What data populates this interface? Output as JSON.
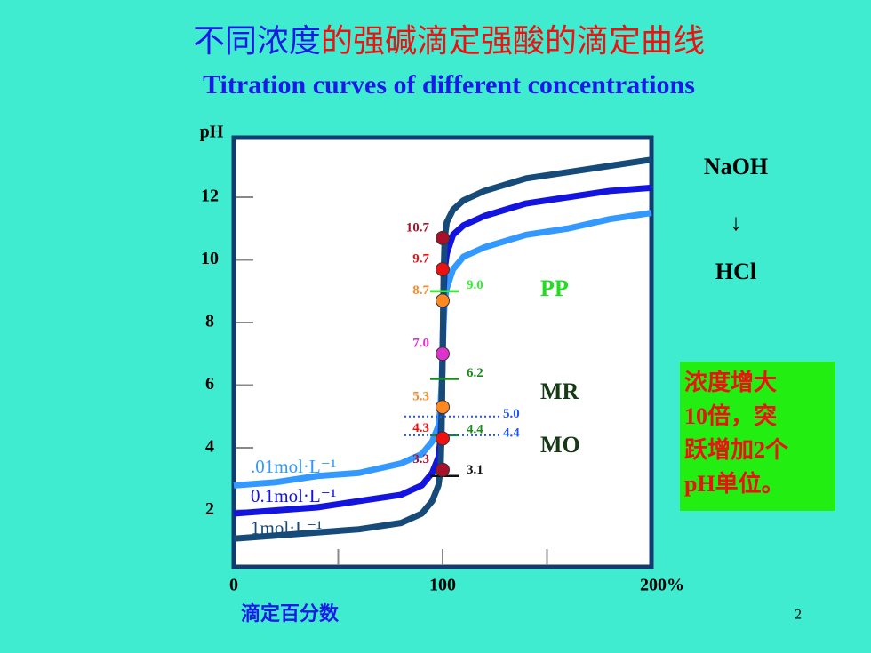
{
  "chart_data": {
    "type": "line",
    "title_parts": [
      "不同浓度",
      "的强碱滴定强酸的滴定曲线"
    ],
    "subtitle": "Titration curves of  different concentrations",
    "ylabel": "pH",
    "xlabel": "滴定百分数",
    "x": [
      0,
      20,
      40,
      60,
      80,
      90,
      95,
      98,
      99,
      99.5,
      100,
      100.5,
      101,
      102,
      105,
      110,
      120,
      140,
      160,
      180,
      200
    ],
    "series": [
      {
        "name": ".01mol·L⁻¹",
        "color": "#3399ff",
        "values": [
          2.8,
          2.9,
          3.1,
          3.2,
          3.5,
          3.8,
          4.2,
          4.7,
          5.3,
          6.0,
          7.0,
          8.0,
          8.7,
          9.1,
          9.7,
          10.1,
          10.4,
          10.8,
          11.0,
          11.3,
          11.5
        ]
      },
      {
        "name": "0.1mol·L⁻¹",
        "color": "#1414e0",
        "values": [
          1.9,
          2.0,
          2.1,
          2.3,
          2.5,
          2.8,
          3.2,
          3.7,
          4.3,
          5.0,
          7.0,
          9.0,
          9.7,
          10.2,
          10.8,
          11.1,
          11.4,
          11.8,
          12.0,
          12.2,
          12.3
        ]
      },
      {
        "name": "1mol·L⁻¹",
        "color": "#164a78",
        "values": [
          1.1,
          1.2,
          1.3,
          1.4,
          1.6,
          1.9,
          2.3,
          2.8,
          3.3,
          4.5,
          7.0,
          9.5,
          10.7,
          11.2,
          11.6,
          11.9,
          12.2,
          12.6,
          12.8,
          13.0,
          13.2
        ]
      }
    ],
    "xlim": [
      0,
      200
    ],
    "ylim": [
      0.2,
      13.9
    ],
    "xticks": [
      0,
      100,
      {
        "value": 200,
        "label": "200%"
      }
    ],
    "xminor": [
      50,
      150
    ],
    "yticks": [
      2,
      4,
      6,
      8,
      10,
      12
    ],
    "markers": {
      "x": 100,
      "values": [
        10.7,
        9.7,
        8.7,
        7.0,
        5.3,
        4.3,
        3.3
      ],
      "value_labels": [
        "10.7",
        "9.7",
        "8.7",
        "7.0",
        "5.3",
        "4.3",
        "3.3"
      ],
      "colors": [
        "#a8102c",
        "#ee1111",
        "#ff8822",
        "#dd33cc",
        "#ff8822",
        "#ee1111",
        "#a8102c"
      ]
    },
    "reference_lines": [
      {
        "value": 9.0,
        "label": "9.0",
        "color": "#33ee33",
        "dashed": false
      },
      {
        "value": 6.2,
        "label": "6.2",
        "color": "#1a8a1a",
        "dashed": false
      },
      {
        "value": 4.4,
        "label": "4.4",
        "color": "#1a8a1a",
        "dashed": false
      },
      {
        "value": 3.1,
        "label": "3.1",
        "color": "#111111",
        "dashed": false
      },
      {
        "value": 5.0,
        "label": "5.0",
        "color": "#2255ee",
        "dashed": true
      },
      {
        "value": 4.4,
        "label": "4.4",
        "color": "#2255ee",
        "dashed": true
      }
    ],
    "indicators": [
      {
        "name": "PP",
        "color": "#22dd22"
      },
      {
        "name": "MR",
        "color": "#153a15"
      },
      {
        "name": "MO",
        "color": "#153a15"
      }
    ],
    "titrant": "NaOH",
    "arrow": "↓",
    "analyte": "HCl",
    "note": [
      "浓度增大",
      "10倍，突",
      "跃增加2个",
      "pH单位。"
    ],
    "page_number": "2"
  }
}
